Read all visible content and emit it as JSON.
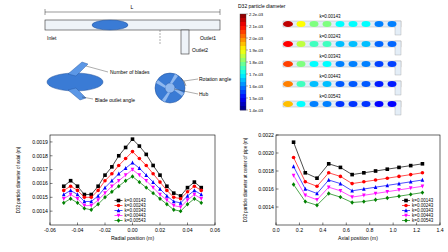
{
  "diagram": {
    "labels": [
      "L",
      "Inlet",
      "Outlet1",
      "Outlet2",
      "Number of blades",
      "Blade outlet angle",
      "Rotation angle",
      "Hub"
    ]
  },
  "contour": {
    "title": "D32 particle diameter",
    "colorbar": {
      "range": [
        0.0014,
        0.0022
      ],
      "ticks": [
        {
          "value": 0.0022,
          "label": "2.2e-03"
        },
        {
          "value": 0.0021,
          "label": "2.1e-03"
        },
        {
          "value": 0.002,
          "label": "2.0e-03"
        },
        {
          "value": 0.0019,
          "label": "1.9e-03"
        },
        {
          "value": 0.0018,
          "label": "1.8e-03"
        },
        {
          "value": 0.0017,
          "label": "1.7e-03"
        },
        {
          "value": 0.0016,
          "label": "1.6e-03"
        },
        {
          "value": 0.0015,
          "label": "1.5e-03"
        },
        {
          "value": 0.0014,
          "label": "1.4e-03"
        }
      ]
    },
    "rows": [
      {
        "label": "k=0.00143",
        "values": [
          0.00215,
          0.0019,
          0.0018,
          0.0018,
          0.0017,
          0.0017,
          0.0017,
          0.0016,
          0.0016
        ]
      },
      {
        "label": "k=0.00243",
        "values": [
          0.0021,
          0.00185,
          0.00175,
          0.00175,
          0.00165,
          0.00165,
          0.00165,
          0.00158,
          0.00158
        ]
      },
      {
        "label": "k=0.00343",
        "values": [
          0.00205,
          0.0018,
          0.0017,
          0.0017,
          0.0016,
          0.0016,
          0.0016,
          0.00155,
          0.00155
        ]
      },
      {
        "label": "k=0.00443",
        "values": [
          0.002,
          0.00175,
          0.00165,
          0.00165,
          0.00157,
          0.00157,
          0.00157,
          0.00152,
          0.00152
        ]
      },
      {
        "label": "k=0.00543",
        "values": [
          0.00195,
          0.0017,
          0.0016,
          0.0016,
          0.00154,
          0.00154,
          0.00154,
          0.0015,
          0.0015
        ]
      }
    ]
  },
  "chart_data": [
    {
      "type": "line",
      "x_label": "Radial position (m)",
      "y_label": "D32 particle diameter of axial (m)",
      "x": [
        -0.05,
        -0.045,
        -0.04,
        -0.035,
        -0.03,
        -0.025,
        -0.02,
        -0.015,
        -0.01,
        -0.005,
        0,
        0.005,
        0.01,
        0.015,
        0.02,
        0.025,
        0.03,
        0.035,
        0.04,
        0.045,
        0.05
      ],
      "xlim": [
        -0.06,
        0.06
      ],
      "xticks": [
        -0.06,
        -0.04,
        -0.02,
        {
          "value": 0,
          "label": "0.00"
        },
        0.02,
        0.04,
        0.06
      ],
      "ylim": [
        0.0013,
        0.00195
      ],
      "yticks": [
        0.0014,
        0.0015,
        0.0016,
        0.0017,
        0.0018,
        0.0019
      ],
      "legend": "bottom",
      "series": [
        {
          "name": "k=0.00143",
          "color": "#000000",
          "marker": "square",
          "values": [
            0.00158,
            0.00162,
            0.00158,
            0.00152,
            0.00152,
            0.00158,
            0.00166,
            0.00172,
            0.0018,
            0.00186,
            0.00192,
            0.00187,
            0.00181,
            0.00173,
            0.00166,
            0.00158,
            0.00153,
            0.00151,
            0.00157,
            0.00161,
            0.00157
          ]
        },
        {
          "name": "k=0.00243",
          "color": "#ff0000",
          "marker": "circle",
          "values": [
            0.00155,
            0.00158,
            0.00155,
            0.0015,
            0.0015,
            0.00155,
            0.00162,
            0.00167,
            0.00173,
            0.00178,
            0.00183,
            0.00178,
            0.00173,
            0.00167,
            0.00161,
            0.00155,
            0.0015,
            0.00149,
            0.00154,
            0.00158,
            0.00155
          ]
        },
        {
          "name": "k=0.00343",
          "color": "#0000ff",
          "marker": "triangle",
          "values": [
            0.00152,
            0.00155,
            0.00152,
            0.00147,
            0.00147,
            0.00151,
            0.00157,
            0.00162,
            0.00167,
            0.00171,
            0.00175,
            0.00171,
            0.00166,
            0.00161,
            0.00156,
            0.00151,
            0.00147,
            0.00146,
            0.00151,
            0.00155,
            0.00152
          ]
        },
        {
          "name": "k=0.00443",
          "color": "#ff00ff",
          "marker": "triangle-down",
          "values": [
            0.00149,
            0.00152,
            0.00149,
            0.00144,
            0.00144,
            0.00148,
            0.00153,
            0.00158,
            0.00162,
            0.00166,
            0.0017,
            0.00166,
            0.00162,
            0.00157,
            0.00152,
            0.00148,
            0.00144,
            0.00143,
            0.00148,
            0.00152,
            0.00149
          ]
        },
        {
          "name": "k=0.00543",
          "color": "#008000",
          "marker": "diamond",
          "values": [
            0.00146,
            0.00149,
            0.00146,
            0.00142,
            0.00141,
            0.00145,
            0.0015,
            0.00154,
            0.00158,
            0.00162,
            0.00165,
            0.00161,
            0.00157,
            0.00153,
            0.00149,
            0.00145,
            0.00141,
            0.0014,
            0.00145,
            0.00149,
            0.00146
          ]
        }
      ]
    },
    {
      "type": "line",
      "x_label": "Axial position (m)",
      "y_label": "D32 particle diameter at center of pipe (m)",
      "x": [
        0.15,
        0.25,
        0.35,
        0.45,
        0.55,
        0.65,
        0.75,
        0.85,
        0.95,
        1.05,
        1.15,
        1.25
      ],
      "xlim": [
        0,
        1.4
      ],
      "xticks": [
        {
          "value": 0,
          "label": "0.0"
        },
        0.2,
        0.4,
        0.6,
        0.8,
        {
          "value": 1,
          "label": "1.0"
        },
        1.2,
        1.4
      ],
      "ylim": [
        0.0012,
        0.0022
      ],
      "yticks": [
        0.0014,
        0.0016,
        0.0018,
        {
          "value": 0.002,
          "label": "0.0020"
        },
        0.0022
      ],
      "legend": "bottom-right",
      "series": [
        {
          "name": "k=0.00143",
          "color": "#000000",
          "marker": "square",
          "values": [
            0.00212,
            0.00178,
            0.00172,
            0.00188,
            0.00184,
            0.00176,
            0.00178,
            0.0018,
            0.00182,
            0.00184,
            0.00186,
            0.00188
          ]
        },
        {
          "name": "k=0.00243",
          "color": "#ff0000",
          "marker": "circle",
          "values": [
            0.00195,
            0.00168,
            0.00163,
            0.00178,
            0.00174,
            0.00166,
            0.00168,
            0.0017,
            0.00172,
            0.00174,
            0.00176,
            0.00178
          ]
        },
        {
          "name": "k=0.00343",
          "color": "#0000ff",
          "marker": "triangle",
          "values": [
            0.00185,
            0.0016,
            0.00155,
            0.0017,
            0.00166,
            0.00158,
            0.0016,
            0.00162,
            0.00164,
            0.00166,
            0.00168,
            0.0017
          ]
        },
        {
          "name": "k=0.00443",
          "color": "#ff00ff",
          "marker": "triangle-down",
          "values": [
            0.00175,
            0.00153,
            0.00148,
            0.00162,
            0.00158,
            0.00151,
            0.00153,
            0.00155,
            0.00157,
            0.00159,
            0.00161,
            0.00163
          ]
        },
        {
          "name": "k=0.00543",
          "color": "#008000",
          "marker": "diamond",
          "values": [
            0.00165,
            0.00146,
            0.00142,
            0.00155,
            0.00151,
            0.00145,
            0.00146,
            0.00148,
            0.0015,
            0.00152,
            0.00154,
            0.00156
          ]
        }
      ]
    }
  ]
}
